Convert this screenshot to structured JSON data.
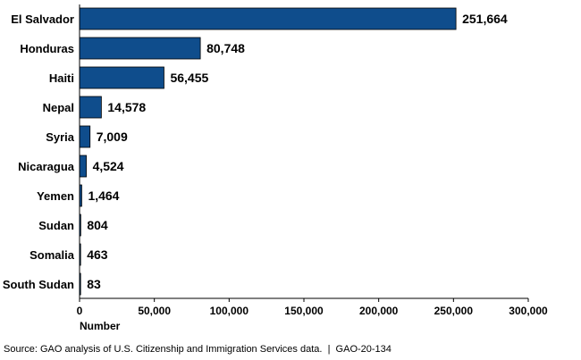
{
  "chart_data": {
    "type": "bar",
    "orientation": "horizontal",
    "categories": [
      "El Salvador",
      "Honduras",
      "Haiti",
      "Nepal",
      "Syria",
      "Nicaragua",
      "Yemen",
      "Sudan",
      "Somalia",
      "South Sudan"
    ],
    "values": [
      251664,
      80748,
      56455,
      14578,
      7009,
      4524,
      1464,
      804,
      463,
      83
    ],
    "value_labels": [
      "251,664",
      "80,748",
      "56,455",
      "14,578",
      "7,009",
      "4,524",
      "1,464",
      "804",
      "463",
      "83"
    ],
    "xlim": [
      0,
      300000
    ],
    "xticks": [
      0,
      50000,
      100000,
      150000,
      200000,
      250000,
      300000
    ],
    "xtick_labels": [
      "0",
      "50,000",
      "100,000",
      "150,000",
      "200,000",
      "250,000",
      "300,000"
    ],
    "xlabel": "Number",
    "ylabel": "",
    "title": "",
    "bar_color": "#0f4d8c",
    "grid": false
  },
  "source": {
    "text": "Source: GAO analysis of U.S. Citizenship and Immigration Services data.",
    "separator": "|",
    "report_id": "GAO-20-134"
  }
}
